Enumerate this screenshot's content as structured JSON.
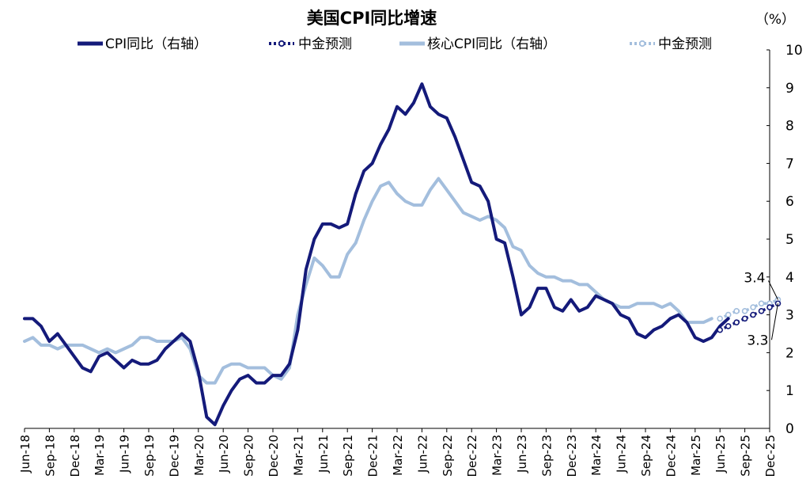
{
  "chart_data": {
    "type": "line",
    "title": "美国CPI同比增速",
    "unit_label": "（%）",
    "ylim": [
      0,
      10
    ],
    "y_ticks": [
      0,
      1,
      2,
      3,
      4,
      5,
      6,
      7,
      8,
      9,
      10
    ],
    "y_axis_side": "right",
    "x_tick_labels": [
      "Jun-18",
      "Sep-18",
      "Dec-18",
      "Mar-19",
      "Jun-19",
      "Sep-19",
      "Dec-19",
      "Mar-20",
      "Jun-20",
      "Sep-20",
      "Dec-20",
      "Mar-21",
      "Jun-21",
      "Sep-21",
      "Dec-21",
      "Mar-22",
      "Jun-22",
      "Sep-22",
      "Dec-22",
      "Mar-23",
      "Jun-23",
      "Sep-23",
      "Dec-23",
      "Mar-24",
      "Jun-24",
      "Sep-24",
      "Dec-24",
      "Mar-25",
      "Jun-25",
      "Sep-25",
      "Dec-25"
    ],
    "x_start": "2018-06",
    "x_end": "2025-12",
    "grid": false,
    "legend_position": "top",
    "colors": {
      "cpi": "#141a7a",
      "core": "#a3bedd"
    },
    "series": [
      {
        "name": "CPI同比（右轴）",
        "key": "cpi",
        "style": "solid",
        "start": "2018-06",
        "values": [
          2.9,
          2.9,
          2.7,
          2.3,
          2.5,
          2.2,
          1.9,
          1.6,
          1.5,
          1.9,
          2.0,
          1.8,
          1.6,
          1.8,
          1.7,
          1.7,
          1.8,
          2.1,
          2.3,
          2.5,
          2.3,
          1.5,
          0.3,
          0.1,
          0.6,
          1.0,
          1.3,
          1.4,
          1.2,
          1.2,
          1.4,
          1.4,
          1.7,
          2.6,
          4.2,
          5.0,
          5.4,
          5.4,
          5.3,
          5.4,
          6.2,
          6.8,
          7.0,
          7.5,
          7.9,
          8.5,
          8.3,
          8.6,
          9.1,
          8.5,
          8.3,
          8.2,
          7.7,
          7.1,
          6.5,
          6.4,
          6.0,
          5.0,
          4.9,
          4.0,
          3.0,
          3.2,
          3.7,
          3.7,
          3.2,
          3.1,
          3.4,
          3.1,
          3.2,
          3.5,
          3.4,
          3.3,
          3.0,
          2.9,
          2.5,
          2.4,
          2.6,
          2.7,
          2.9,
          3.0,
          2.8,
          2.4,
          2.3,
          2.4,
          2.7,
          2.9
        ]
      },
      {
        "name": "中金预测",
        "key": "cpi_forecast",
        "style": "dotted-markers",
        "start": "2025-06",
        "values": [
          2.6,
          2.7,
          2.8,
          2.9,
          3.0,
          3.1,
          3.2,
          3.3
        ]
      },
      {
        "name": "核心CPI同比（右轴）",
        "key": "core",
        "style": "solid",
        "start": "2018-06",
        "values": [
          2.3,
          2.4,
          2.2,
          2.2,
          2.1,
          2.2,
          2.2,
          2.2,
          2.1,
          2.0,
          2.1,
          2.0,
          2.1,
          2.2,
          2.4,
          2.4,
          2.3,
          2.3,
          2.3,
          2.4,
          2.1,
          1.4,
          1.2,
          1.2,
          1.6,
          1.7,
          1.7,
          1.6,
          1.6,
          1.6,
          1.4,
          1.3,
          1.6,
          3.0,
          3.8,
          4.5,
          4.3,
          4.0,
          4.0,
          4.6,
          4.9,
          5.5,
          6.0,
          6.4,
          6.5,
          6.2,
          6.0,
          5.9,
          5.9,
          6.3,
          6.6,
          6.3,
          6.0,
          5.7,
          5.6,
          5.5,
          5.6,
          5.5,
          5.3,
          4.8,
          4.7,
          4.3,
          4.1,
          4.0,
          4.0,
          3.9,
          3.9,
          3.8,
          3.8,
          3.6,
          3.4,
          3.3,
          3.2,
          3.2,
          3.3,
          3.3,
          3.3,
          3.2,
          3.3,
          3.1,
          2.8,
          2.8,
          2.8,
          2.9
        ]
      },
      {
        "name": "中金预测",
        "key": "core_forecast",
        "style": "dotted-markers",
        "start": "2025-06",
        "values": [
          2.9,
          3.0,
          3.1,
          3.1,
          3.2,
          3.3,
          3.3,
          3.4
        ]
      }
    ],
    "annotations": [
      {
        "text": "3.4",
        "series": "core_forecast"
      },
      {
        "text": "3.3",
        "series": "cpi_forecast"
      }
    ]
  }
}
